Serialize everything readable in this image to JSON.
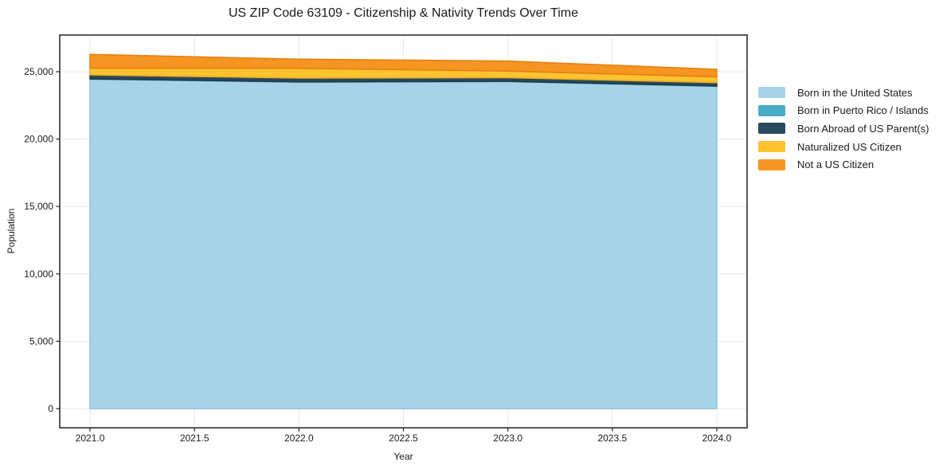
{
  "title": "US ZIP Code 63109 - Citizenship & Nativity Trends Over Time",
  "chart_data": {
    "type": "area",
    "stacked": true,
    "title": "US ZIP Code 63109 - Citizenship & Nativity Trends Over Time",
    "xlabel": "Year",
    "ylabel": "Population",
    "x": [
      2021,
      2022,
      2023,
      2024
    ],
    "series": [
      {
        "name": "Born in the United States",
        "color": "#a7d3e9",
        "edge": "#8ec4de",
        "values": [
          24450,
          24230,
          24270,
          23920
        ]
      },
      {
        "name": "Born in Puerto Rico / Islands",
        "color": "#4aabc6",
        "edge": "#3e96af",
        "values": [
          20,
          20,
          20,
          20
        ]
      },
      {
        "name": "Born Abroad of US Parent(s)",
        "color": "#29495c",
        "edge": "#1f3947",
        "values": [
          295,
          280,
          270,
          250
        ]
      },
      {
        "name": "Naturalized US Citizen",
        "color": "#fdc330",
        "edge": "#edae24",
        "values": [
          490,
          725,
          490,
          430
        ]
      },
      {
        "name": "Not a US Citizen",
        "color": "#f79523",
        "edge": "#e4810f",
        "values": [
          1030,
          675,
          740,
          555
        ]
      }
    ],
    "xlim": [
      2020.855,
      2024.145
    ],
    "ylim": [
      -1420,
      27720
    ],
    "x_ticks": [
      2021.0,
      2021.5,
      2022.0,
      2022.5,
      2023.0,
      2023.5,
      2024.0
    ],
    "x_tick_labels": [
      "2021.0",
      "2021.5",
      "2022.0",
      "2022.5",
      "2023.0",
      "2023.5",
      "2024.0"
    ],
    "y_ticks": [
      0,
      5000,
      10000,
      15000,
      20000,
      25000
    ],
    "y_tick_labels": [
      "0",
      "5,000",
      "10,000",
      "15,000",
      "20,000",
      "25,000"
    ],
    "grid": true,
    "legend_position": "right"
  },
  "colors": {
    "background": "#ffffff",
    "grid": "#e7e7e7",
    "spine": "#222222",
    "text": "#1a1a1a"
  }
}
